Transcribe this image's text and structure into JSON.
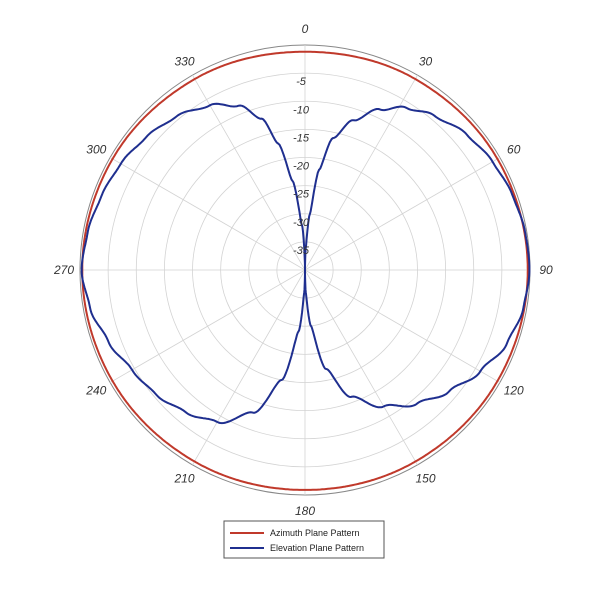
{
  "chart_data": {
    "type": "polar-line",
    "title": "",
    "angle_unit": "degrees",
    "angle_ticks": [
      0,
      30,
      60,
      90,
      120,
      150,
      180,
      210,
      240,
      270,
      300,
      330
    ],
    "angle_tick_labels": [
      "0",
      "30",
      "60",
      "90",
      "120",
      "150",
      "180",
      "210",
      "240",
      "270",
      "300",
      "330"
    ],
    "radial_range": [
      -40,
      0
    ],
    "radial_ticks": [
      -5,
      -10,
      -15,
      -20,
      -25,
      -30,
      -35
    ],
    "radial_tick_labels": [
      "-5",
      "-10",
      "-15",
      "-20",
      "-25",
      "-30",
      "-35"
    ],
    "grid": true,
    "legend_position": "bottom",
    "series": [
      {
        "name": "Azimuth Plane Pattern",
        "color": "#c0392b",
        "angles": [
          0,
          30,
          60,
          90,
          120,
          150,
          180,
          210,
          240,
          270,
          300,
          330,
          360
        ],
        "values": [
          -1.2,
          -0.8,
          -0.5,
          -0.4,
          -0.5,
          -0.7,
          -0.9,
          -0.7,
          -0.5,
          -0.4,
          -0.5,
          -0.8,
          -1.2
        ]
      },
      {
        "name": "Elevation Plane Pattern",
        "color": "#1f2f8f",
        "angles": [
          0,
          2,
          5,
          8,
          12,
          18,
          25,
          32,
          40,
          50,
          60,
          70,
          80,
          90,
          100,
          110,
          120,
          130,
          140,
          150,
          160,
          168,
          174,
          178,
          180,
          182,
          186,
          192,
          200,
          210,
          220,
          230,
          240,
          250,
          260,
          270,
          280,
          290,
          300,
          310,
          320,
          330,
          338,
          344,
          348,
          352,
          356,
          360
        ],
        "values": [
          -40,
          -36,
          -30,
          -22,
          -16,
          -12,
          -8.5,
          -6,
          -4.2,
          -2.5,
          -1.5,
          -0.8,
          -0.3,
          -0.1,
          -0.6,
          -1.8,
          -4,
          -6.5,
          -9,
          -12,
          -16,
          -22,
          -30,
          -36,
          -40,
          -36,
          -29,
          -20,
          -13,
          -8.8,
          -7,
          -5.5,
          -4.5,
          -2.8,
          -1.2,
          -0.3,
          -0.8,
          -1.5,
          -2.2,
          -3.2,
          -4.4,
          -6.2,
          -8.5,
          -12,
          -17,
          -24,
          -32,
          -40
        ]
      }
    ]
  }
}
